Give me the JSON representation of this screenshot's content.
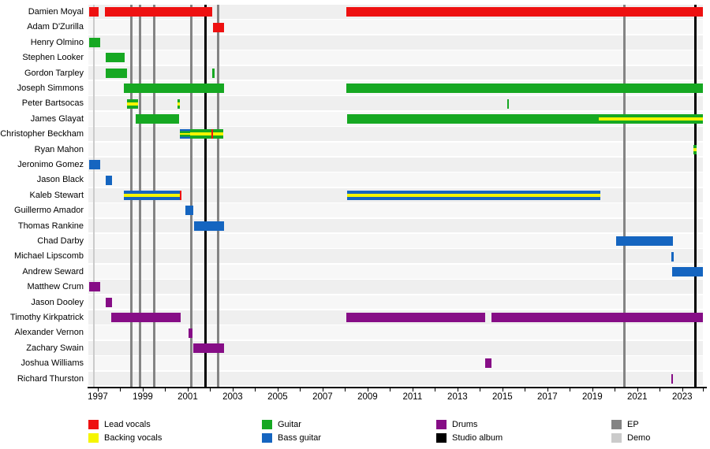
{
  "chart_data": {
    "type": "bar",
    "variant": "band-membership-timeline",
    "axis": {
      "min": 1996.58,
      "max": 2023.92,
      "tick_step_years": 1,
      "label_step_years": 2,
      "tick_label_years": [
        1997,
        1999,
        2001,
        2003,
        2005,
        2007,
        2009,
        2011,
        2013,
        2015,
        2017,
        2019,
        2021,
        2023
      ],
      "tick_labels": [
        "1997",
        "1999",
        "2001",
        "2003",
        "2005",
        "2007",
        "2009",
        "2011",
        "2013",
        "2015",
        "2017",
        "2019",
        "2021",
        "2023"
      ]
    },
    "colors": {
      "lead": "#ee1111",
      "backing": "#f5f500",
      "guitar": "#16a822",
      "bass": "#1565c0",
      "drums": "#860d86",
      "album": "#000000",
      "ep": "#848484",
      "demo": "#cbcbcb",
      "row_band_even": "#efefef",
      "row_band_odd": "#f7f7f7"
    },
    "events": [
      {
        "type": "demo",
        "year": 1996.82
      },
      {
        "type": "ep",
        "year": 1998.47
      },
      {
        "type": "ep",
        "year": 1998.86
      },
      {
        "type": "ep",
        "year": 1999.49
      },
      {
        "type": "ep",
        "year": 2001.14
      },
      {
        "type": "album",
        "year": 2001.77
      },
      {
        "type": "ep",
        "year": 2002.33
      },
      {
        "type": "ep",
        "year": 2020.4
      },
      {
        "type": "album",
        "year": 2023.56
      }
    ],
    "members": [
      {
        "name": "Damien Moyal",
        "segments": [
          {
            "start": 1996.6,
            "end": 1997.05,
            "roles": [
              "lead"
            ]
          },
          {
            "start": 1997.3,
            "end": 2002.1,
            "roles": [
              "lead"
            ]
          },
          {
            "start": 2008.05,
            "end": 2023.92,
            "roles": [
              "lead"
            ]
          }
        ]
      },
      {
        "name": "Adam D'Zurilla",
        "segments": [
          {
            "start": 2002.13,
            "end": 2002.62,
            "roles": [
              "lead"
            ]
          }
        ]
      },
      {
        "name": "Henry Olmino",
        "segments": [
          {
            "start": 1996.6,
            "end": 1997.1,
            "roles": [
              "guitar"
            ]
          }
        ]
      },
      {
        "name": "Stephen Looker",
        "segments": [
          {
            "start": 1997.35,
            "end": 1998.2,
            "roles": [
              "guitar"
            ]
          }
        ]
      },
      {
        "name": "Gordon Tarpley",
        "segments": [
          {
            "start": 1997.35,
            "end": 1998.3,
            "roles": [
              "guitar"
            ]
          },
          {
            "start": 2002.1,
            "end": 2002.2,
            "roles": [
              "guitar"
            ]
          }
        ]
      },
      {
        "name": "Joseph Simmons",
        "segments": [
          {
            "start": 1998.15,
            "end": 2002.62,
            "roles": [
              "guitar"
            ]
          },
          {
            "start": 2008.05,
            "end": 2023.92,
            "roles": [
              "guitar"
            ]
          }
        ]
      },
      {
        "name": "Peter Bartsocas",
        "segments": [
          {
            "start": 1998.3,
            "end": 1998.8,
            "roles": [
              "guitar",
              "backing",
              "guitar"
            ]
          },
          {
            "start": 2000.55,
            "end": 2000.65,
            "roles": [
              "guitar",
              "backing",
              "guitar"
            ]
          },
          {
            "start": 2015.2,
            "end": 2015.27,
            "roles": [
              "guitar"
            ]
          }
        ]
      },
      {
        "name": "James Glayat",
        "segments": [
          {
            "start": 1998.7,
            "end": 2000.6,
            "roles": [
              "guitar"
            ]
          },
          {
            "start": 2008.1,
            "end": 2019.3,
            "roles": [
              "guitar"
            ]
          },
          {
            "start": 2019.3,
            "end": 2023.92,
            "roles": [
              "guitar",
              "backing",
              "guitar"
            ]
          }
        ]
      },
      {
        "name": "Christopher Beckham",
        "segments": [
          {
            "start": 2000.65,
            "end": 2001.1,
            "roles": [
              "bass",
              "guitar",
              "backing",
              "guitar",
              "bass"
            ]
          },
          {
            "start": 2001.1,
            "end": 2002.05,
            "roles": [
              "guitar",
              "backing",
              "guitar"
            ]
          },
          {
            "start": 2002.05,
            "end": 2002.12,
            "roles": [
              "lead"
            ]
          },
          {
            "start": 2002.12,
            "end": 2002.58,
            "roles": [
              "guitar",
              "backing",
              "guitar"
            ]
          }
        ]
      },
      {
        "name": "Ryan Mahon",
        "segments": [
          {
            "start": 2023.5,
            "end": 2023.65,
            "roles": [
              "guitar",
              "backing",
              "guitar"
            ]
          }
        ]
      },
      {
        "name": "Jeronimo Gomez",
        "segments": [
          {
            "start": 1996.6,
            "end": 1997.1,
            "roles": [
              "bass"
            ]
          }
        ]
      },
      {
        "name": "Jason Black",
        "segments": [
          {
            "start": 1997.35,
            "end": 1997.65,
            "roles": [
              "bass"
            ]
          }
        ]
      },
      {
        "name": "Kaleb Stewart",
        "segments": [
          {
            "start": 1998.15,
            "end": 2000.65,
            "roles": [
              "bass",
              "backing",
              "bass"
            ]
          },
          {
            "start": 2000.65,
            "end": 2000.72,
            "roles": [
              "lead"
            ]
          },
          {
            "start": 2008.1,
            "end": 2019.35,
            "roles": [
              "bass",
              "backing",
              "bass"
            ]
          }
        ]
      },
      {
        "name": "Guillermo Amador",
        "segments": [
          {
            "start": 2000.9,
            "end": 2001.25,
            "roles": [
              "bass"
            ]
          }
        ]
      },
      {
        "name": "Thomas Rankine",
        "segments": [
          {
            "start": 2001.3,
            "end": 2002.62,
            "roles": [
              "bass"
            ]
          }
        ]
      },
      {
        "name": "Chad Darby",
        "segments": [
          {
            "start": 2020.05,
            "end": 2022.6,
            "roles": [
              "bass"
            ]
          }
        ]
      },
      {
        "name": "Michael Lipscomb",
        "segments": [
          {
            "start": 2022.5,
            "end": 2022.62,
            "roles": [
              "bass"
            ]
          }
        ]
      },
      {
        "name": "Andrew Seward",
        "segments": [
          {
            "start": 2022.55,
            "end": 2023.92,
            "roles": [
              "bass"
            ]
          }
        ]
      },
      {
        "name": "Matthew Crum",
        "segments": [
          {
            "start": 1996.6,
            "end": 1997.1,
            "roles": [
              "drums"
            ]
          }
        ]
      },
      {
        "name": "Jason Dooley",
        "segments": [
          {
            "start": 1997.35,
            "end": 1997.65,
            "roles": [
              "drums"
            ]
          }
        ]
      },
      {
        "name": "Timothy Kirkpatrick",
        "segments": [
          {
            "start": 1997.6,
            "end": 2000.7,
            "roles": [
              "drums"
            ]
          },
          {
            "start": 2008.05,
            "end": 2014.25,
            "roles": [
              "drums"
            ]
          },
          {
            "start": 2014.5,
            "end": 2023.92,
            "roles": [
              "drums"
            ]
          }
        ]
      },
      {
        "name": "Alexander Vernon",
        "segments": [
          {
            "start": 2001.05,
            "end": 2001.2,
            "roles": [
              "drums"
            ]
          }
        ]
      },
      {
        "name": "Zachary Swain",
        "segments": [
          {
            "start": 2001.25,
            "end": 2002.62,
            "roles": [
              "drums"
            ]
          }
        ]
      },
      {
        "name": "Joshua Williams",
        "segments": [
          {
            "start": 2014.25,
            "end": 2014.5,
            "roles": [
              "drums"
            ]
          }
        ]
      },
      {
        "name": "Richard Thurston",
        "segments": [
          {
            "start": 2022.5,
            "end": 2022.6,
            "roles": [
              "drums"
            ]
          }
        ]
      }
    ],
    "legend": {
      "columns": [
        [
          {
            "label": "Lead vocals",
            "role": "lead"
          },
          {
            "label": "Backing vocals",
            "role": "backing"
          }
        ],
        [
          {
            "label": "Guitar",
            "role": "guitar"
          },
          {
            "label": "Bass guitar",
            "role": "bass"
          }
        ],
        [
          {
            "label": "Drums",
            "role": "drums"
          },
          {
            "label": "Studio album",
            "role": "album"
          }
        ],
        [
          {
            "label": "EP",
            "role": "ep"
          },
          {
            "label": "Demo",
            "role": "demo"
          }
        ]
      ]
    }
  }
}
